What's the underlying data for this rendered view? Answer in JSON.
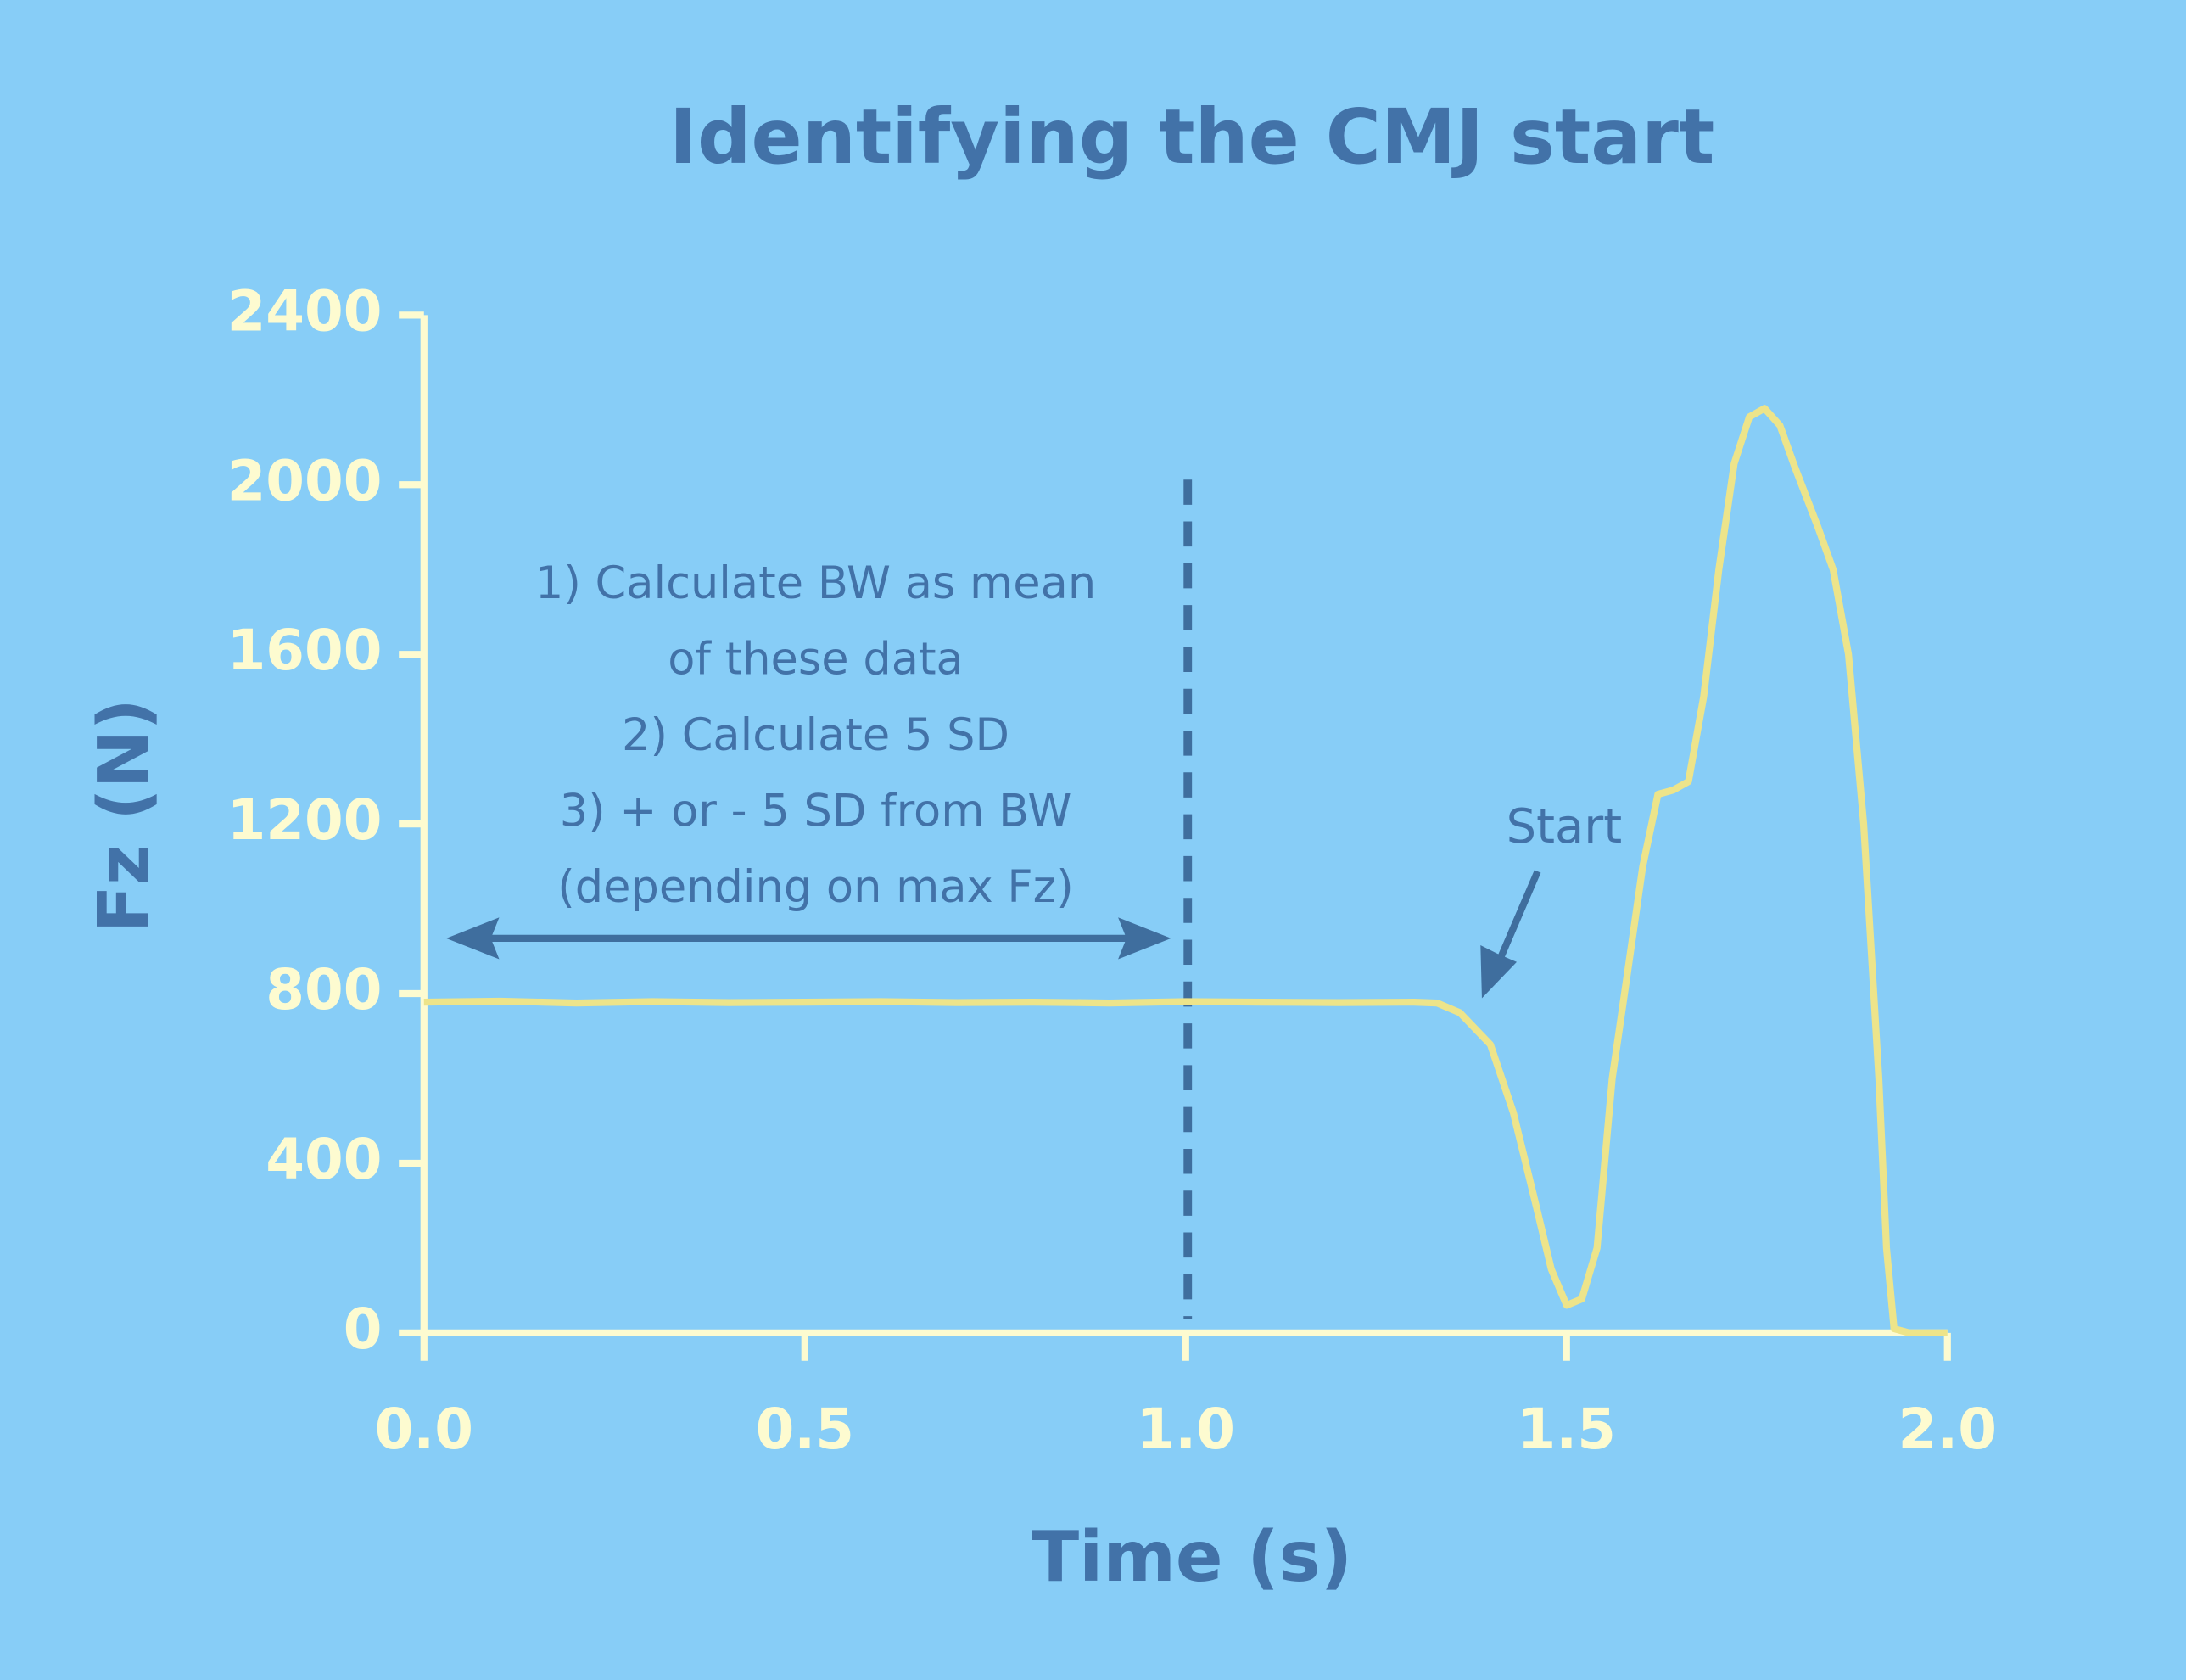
{
  "chart_data": {
    "type": "line",
    "title": "Identifying the CMJ start",
    "x_label": "Time (s)",
    "y_label": "Fz (N)",
    "x": [
      0,
      0.1,
      0.2,
      0.3,
      0.4,
      0.5,
      0.6,
      0.7,
      0.8,
      0.9,
      1.0,
      1.1,
      1.2,
      1.3,
      1.33,
      1.36,
      1.4,
      1.43,
      1.46,
      1.48,
      1.5,
      1.52,
      1.54,
      1.56,
      1.58,
      1.6,
      1.62,
      1.64,
      1.66,
      1.68,
      1.7,
      1.72,
      1.74,
      1.76,
      1.78,
      1.8,
      1.83,
      1.85,
      1.87,
      1.89,
      1.91,
      1.92,
      1.93,
      1.95,
      2.0
    ],
    "values": [
      780,
      782,
      778,
      781,
      779,
      780,
      781,
      779,
      780,
      778,
      781,
      780,
      779,
      780,
      778,
      755,
      680,
      520,
      300,
      150,
      65,
      80,
      200,
      600,
      850,
      1100,
      1270,
      1280,
      1300,
      1500,
      1800,
      2050,
      2160,
      2180,
      2140,
      2040,
      1900,
      1800,
      1600,
      1200,
      600,
      200,
      10,
      0,
      0
    ],
    "color": "#ede48a",
    "xlim": [
      0,
      2
    ],
    "ylim": [
      0,
      2400
    ],
    "xticks": [
      {
        "value": 0,
        "label": "0.0"
      },
      {
        "value": 0.5,
        "label": "0.5"
      },
      {
        "value": 1,
        "label": "1.0"
      },
      {
        "value": 1.5,
        "label": "1.5"
      },
      {
        "value": 2,
        "label": "2.0"
      }
    ],
    "yticks": [
      0,
      400,
      800,
      1200,
      1600,
      2000,
      2400
    ],
    "annotations": [
      "1) Calculate BW as mean",
      "of these data",
      "2) Calculate 5 SD",
      "3) + or - 5 SD from BW",
      "(depending on max Fz)"
    ],
    "start_label": "Start"
  }
}
